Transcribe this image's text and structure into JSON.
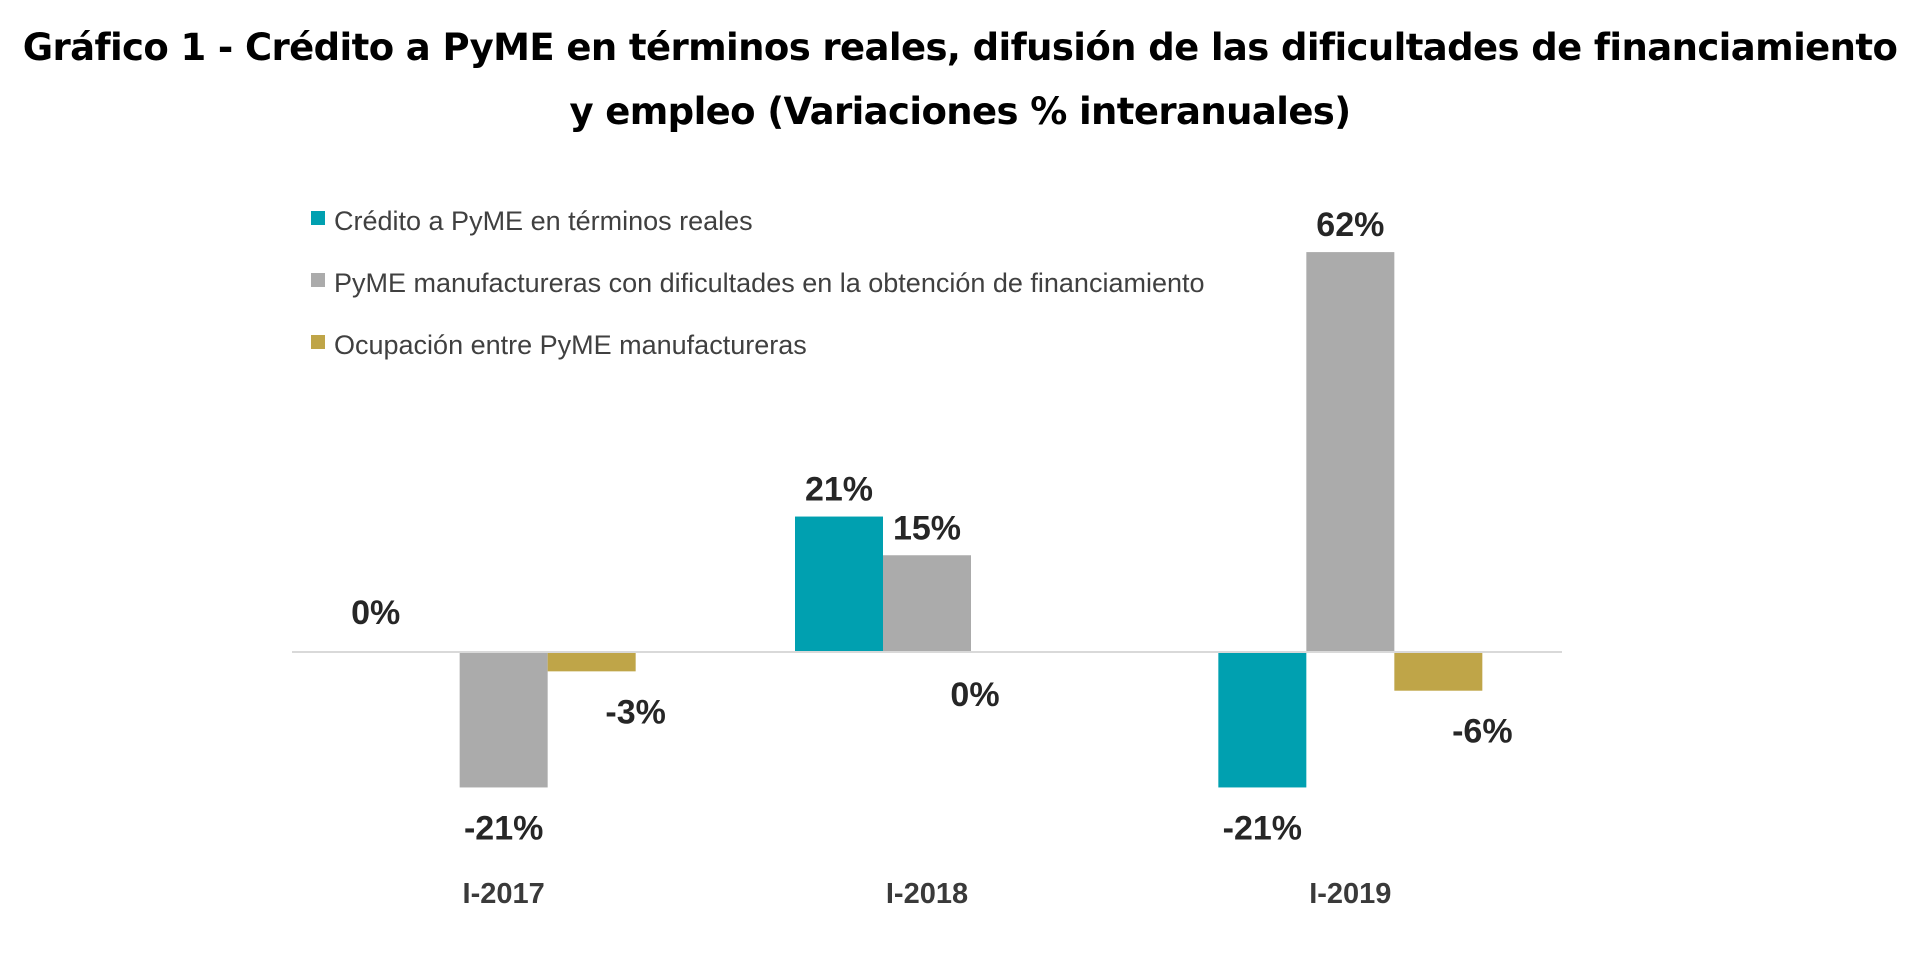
{
  "chart_data": {
    "type": "bar",
    "title_lines": [
      "Gráfico 1 - Crédito a PyME en términos reales, difusión de las dificultades de financiamiento",
      "y empleo (Variaciones % interanuales)"
    ],
    "categories": [
      "I-2017",
      "I-2018",
      "I-2019"
    ],
    "series": [
      {
        "name": "Crédito a PyME en términos reales",
        "color": "#00A0B0",
        "values": [
          0,
          21,
          -21
        ],
        "labels": [
          "0%",
          "21%",
          "-21%"
        ]
      },
      {
        "name": "PyME manufactureras con dificultades en la obtención de financiamiento",
        "color": "#ABABAB",
        "values": [
          -21,
          15,
          62
        ],
        "labels": [
          "-21%",
          "15%",
          "62%"
        ]
      },
      {
        "name": "Ocupación entre PyME manufactureras",
        "color": "#BFA548",
        "values": [
          -3,
          0,
          -6
        ],
        "labels": [
          "-3%",
          "0%",
          "-6%"
        ]
      }
    ],
    "ylim": [
      -32,
      72
    ],
    "grid": false,
    "legend_position": "top-left",
    "axis_line_color": "#D9D9D9"
  }
}
